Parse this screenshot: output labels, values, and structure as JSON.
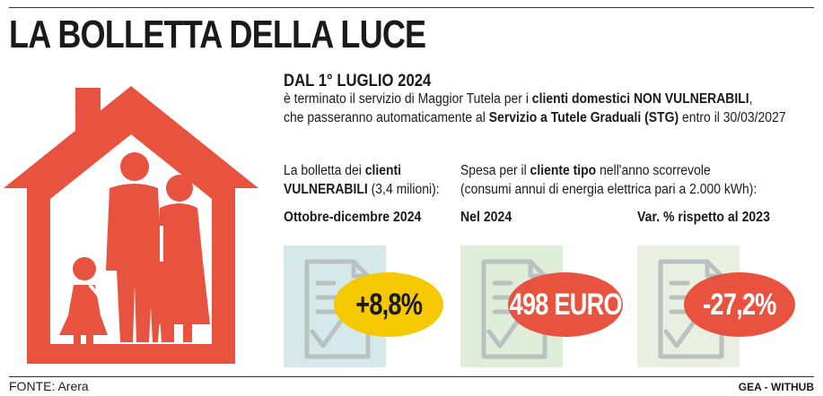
{
  "title": "LA BOLLETTA DELLA LUCE",
  "header": {
    "date": "DAL 1° LUGLIO 2024",
    "line1_pre": "è terminato il servizio di Maggior Tutela per i ",
    "line1_bold": "clienti domestici NON VULNERABILI",
    "line1_post": ",",
    "line2_pre": "che passeranno automaticamente al ",
    "line2_bold": "Servizio a Tutele Graduali (STG)",
    "line2_post": " entro il 30/03/2027"
  },
  "vulnerable": {
    "line1_pre": "La bolletta dei ",
    "line1_bold": "clienti",
    "line2_bold": "VULNERABILI",
    "line2_post": " (3,4 milioni):"
  },
  "typical": {
    "line1_pre": "Spesa per il ",
    "line1_bold": "cliente tipo",
    "line1_post": " nell'anno scorrevole",
    "line2": "(consumi annui di energia elettrica pari a 2.000 kWh):"
  },
  "columns": [
    {
      "heading": "Ottobre-dicembre 2024",
      "value": "+8,8%",
      "bubble_color": "#f5c800",
      "text_color": "#1a1a1a",
      "panel_color": "#d5e9ea"
    },
    {
      "heading": "Nel 2024",
      "value": "498 EURO",
      "bubble_color": "#e8533f",
      "text_color": "#ffffff",
      "panel_color": "#dfeed9"
    },
    {
      "heading": "Var. % rispetto al 2023",
      "value": "-27,2%",
      "bubble_color": "#e8533f",
      "text_color": "#ffffff",
      "panel_color": "#e9f0e2"
    }
  ],
  "colors": {
    "house": "#e8533f",
    "icon_stroke": "#b9c2c0"
  },
  "icons": {
    "house": "house-family-icon",
    "bill": "bill-check-icon"
  },
  "footer": {
    "source": "FONTE: Arera",
    "credit": "GEA - WITHUB"
  }
}
